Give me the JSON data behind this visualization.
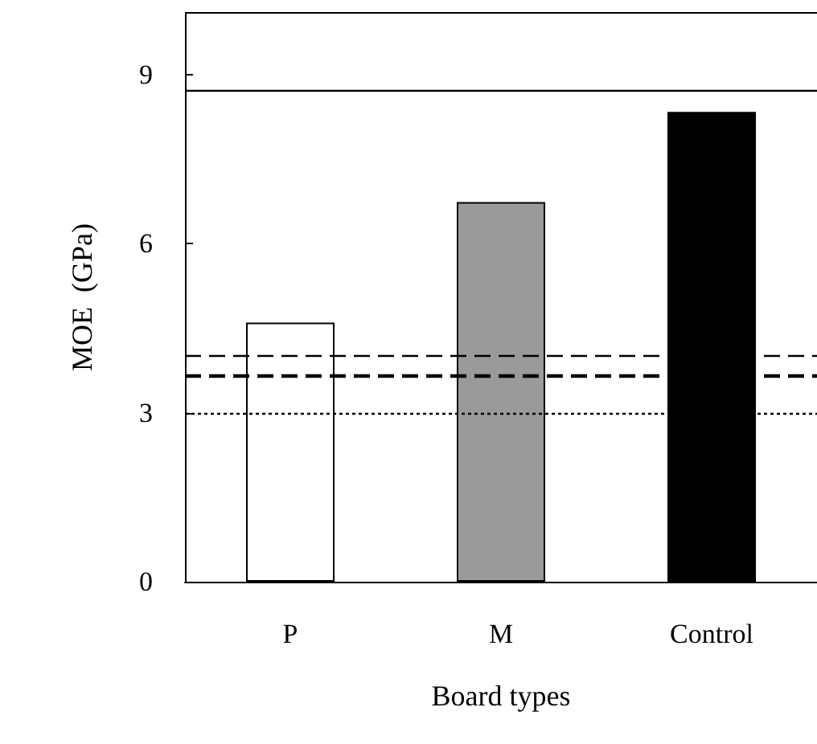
{
  "chart_data": {
    "type": "bar",
    "xlabel": "Board types",
    "ylabel": "MOE  (GPa)",
    "categories": [
      "P",
      "M",
      "Control"
    ],
    "values": [
      4.6,
      6.74,
      8.34
    ],
    "colors": [
      "#ffffff",
      "#9a9a9a",
      "#000000"
    ],
    "ylim": [
      0,
      10.1
    ],
    "yticks": [
      0,
      3,
      6,
      9
    ],
    "grid": false,
    "ref_lines": [
      {
        "axis": "y",
        "value": 8.71,
        "line_style": "solid"
      },
      {
        "axis": "y",
        "value": 4.03,
        "line_style": "dashed"
      },
      {
        "axis": "y",
        "value": 3.66,
        "line_style": "dashed"
      },
      {
        "axis": "y",
        "value": 3.0,
        "line_style": "dotted"
      }
    ]
  }
}
